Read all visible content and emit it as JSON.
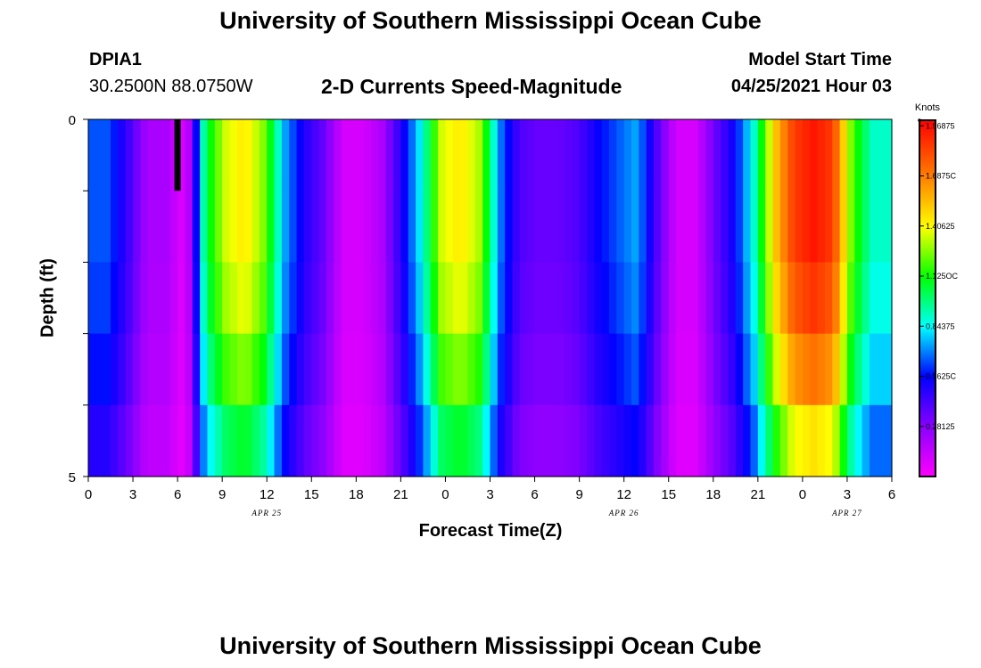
{
  "header": {
    "title": "University of Southern Mississippi Ocean Cube",
    "station": "DPIA1",
    "coords": "30.2500N  88.0750W",
    "model_start_label": "Model Start Time",
    "model_start_value": "04/25/2021 Hour 03",
    "chart_title": "2-D Currents Speed-Magnitude",
    "footer_title": "University of Southern Mississippi Ocean Cube"
  },
  "chart_data": {
    "type": "heatmap",
    "title": "2-D Currents Speed-Magnitude",
    "xlabel": "Forecast Time(Z)",
    "ylabel": "Depth (ft)",
    "x_tick_labels": [
      "0",
      "3",
      "6",
      "9",
      "12",
      "15",
      "18",
      "21",
      "0",
      "3",
      "6",
      "9",
      "12",
      "15",
      "18",
      "21",
      "0",
      "3",
      "6"
    ],
    "date_labels": [
      {
        "text": "APR 25",
        "at_hour": 12
      },
      {
        "text": "APR 26",
        "at_hour": 36
      },
      {
        "text": "APR 27",
        "at_hour": 51
      }
    ],
    "y_tick_labels": [
      "0",
      "5"
    ],
    "ylim": [
      0,
      5
    ],
    "xlim_hours": [
      0,
      54
    ],
    "layers": 5,
    "colorbar": {
      "unit": "Knots",
      "min": 0.0,
      "max": 2.0,
      "tick_values": [
        "0.28125",
        "0.5625",
        "0.84375",
        "1.125",
        "1.40625",
        "1.6875",
        "1.96875"
      ],
      "tick_labels": [
        "0.28125",
        "0.5625C",
        "0.84375",
        "1.125OC",
        "1.40625",
        "1.6875C",
        "1.96875"
      ]
    },
    "knots_nodes": [
      0.65,
      0.65,
      0.45,
      0.2,
      0.2,
      0.05,
      1.05,
      1.35,
      1.45,
      1.25,
      0.75,
      0.5,
      0.35,
      0.1,
      0.1,
      0.2,
      0.5,
      0.85,
      1.35,
      1.45,
      1.3,
      0.7,
      0.4,
      0.35,
      0.35,
      0.4,
      0.55,
      0.65,
      0.75,
      0.4,
      0.1,
      0.1,
      0.35,
      0.55,
      0.9,
      1.5,
      1.85,
      1.95,
      1.85,
      1.2,
      0.9,
      0.9
    ],
    "depth_factors": [
      1.0,
      1.0,
      0.96,
      0.88,
      0.75,
      0.62
    ],
    "marker": {
      "at_hour": 6,
      "layer": 0
    }
  }
}
